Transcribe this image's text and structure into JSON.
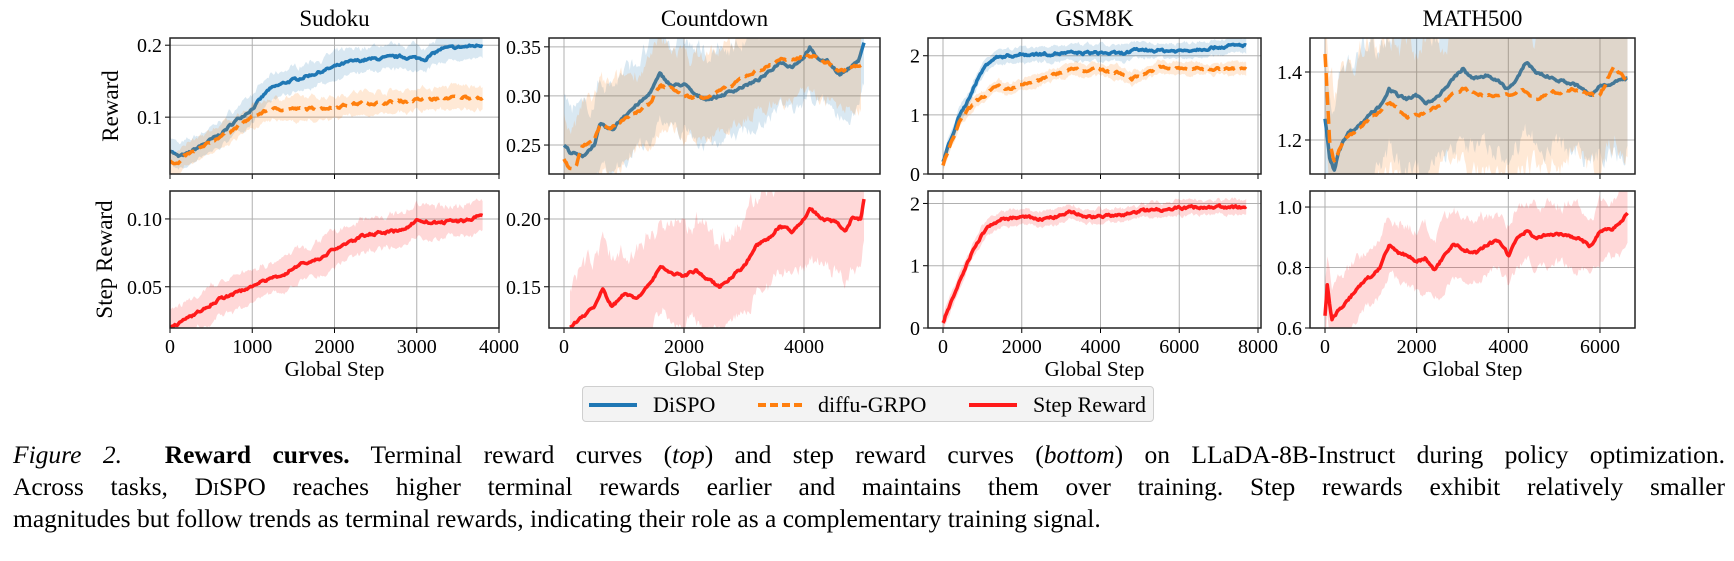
{
  "legend": {
    "items": [
      {
        "label": "DiSPO",
        "color": "#1f77b4",
        "style": "solid"
      },
      {
        "label": "diffu-GRPO",
        "color": "#ff7f0e",
        "style": "dashed"
      },
      {
        "label": "Step Reward",
        "color": "#ff1a1a",
        "style": "solid"
      }
    ]
  },
  "caption": {
    "figure_label": "Figure 2.",
    "bold_title": "Reward curves.",
    "line1_a": "Terminal reward curves (",
    "line1_top": "top",
    "line1_b": ") and step reward curves (",
    "line1_bottom": "bottom",
    "line1_c": ") on LLaDA-8B-Instruct during policy optimization.",
    "line2_a": "Across tasks,",
    "line2_method": "DiSPO",
    "line2_b": "reaches higher terminal rewards earlier and maintains them over training. Step rewards exhibit relatively smaller",
    "line3": "magnitudes but follow trends as terminal rewards, indicating their role as a complementary training signal."
  },
  "chart_data": [
    {
      "type": "line",
      "title": "Sudoku",
      "row": "top",
      "ylabel": "Reward",
      "xlabel": "",
      "xlim": [
        0,
        4000
      ],
      "ylim": [
        0.021,
        0.21
      ],
      "xticks": [
        0,
        1000,
        2000,
        3000,
        4000
      ],
      "yticks": [
        0.1,
        0.2
      ],
      "ytick_labels": [
        "0.1",
        "0.2"
      ],
      "grid": true,
      "series": [
        {
          "name": "DiSPO",
          "color": "#1f77b4",
          "band": 0.018,
          "x": [
            0,
            100,
            200,
            400,
            600,
            800,
            1000,
            1200,
            1400,
            1600,
            1800,
            2000,
            2200,
            2400,
            2600,
            2800,
            3000,
            3100,
            3300,
            3500,
            3800
          ],
          "y": [
            0.055,
            0.045,
            0.048,
            0.062,
            0.075,
            0.095,
            0.112,
            0.138,
            0.148,
            0.155,
            0.162,
            0.17,
            0.177,
            0.18,
            0.182,
            0.184,
            0.182,
            0.181,
            0.195,
            0.197,
            0.2
          ]
        },
        {
          "name": "diffu-GRPO",
          "color": "#ff7f0e",
          "band": 0.016,
          "x": [
            0,
            100,
            200,
            400,
            600,
            800,
            1000,
            1200,
            1400,
            1600,
            1800,
            2000,
            2200,
            2400,
            2600,
            2800,
            3000,
            3200,
            3400,
            3600,
            3800
          ],
          "y": [
            0.04,
            0.035,
            0.047,
            0.058,
            0.073,
            0.085,
            0.1,
            0.11,
            0.112,
            0.111,
            0.112,
            0.114,
            0.118,
            0.12,
            0.12,
            0.122,
            0.124,
            0.125,
            0.127,
            0.128,
            0.126
          ]
        }
      ]
    },
    {
      "type": "line",
      "title": "Countdown",
      "row": "top",
      "ylabel": "",
      "xlabel": "",
      "xlim": [
        -250,
        5267
      ],
      "ylim": [
        0.2205,
        0.359
      ],
      "xticks": [
        0,
        2000,
        4000
      ],
      "yticks": [
        0.25,
        0.3,
        0.35
      ],
      "ytick_labels": [
        "0.25",
        "0.30",
        "0.35"
      ],
      "grid": true,
      "series": [
        {
          "name": "DiSPO",
          "color": "#1f77b4",
          "band": 0.045,
          "x": [
            0,
            100,
            300,
            500,
            600,
            800,
            1000,
            1200,
            1400,
            1600,
            1800,
            2000,
            2200,
            2400,
            2600,
            2800,
            3000,
            3200,
            3400,
            3600,
            3800,
            4000,
            4100,
            4200,
            4400,
            4600,
            4800,
            4900,
            5000
          ],
          "y": [
            0.25,
            0.243,
            0.238,
            0.25,
            0.27,
            0.265,
            0.28,
            0.29,
            0.3,
            0.322,
            0.31,
            0.312,
            0.3,
            0.297,
            0.3,
            0.305,
            0.31,
            0.315,
            0.323,
            0.335,
            0.33,
            0.34,
            0.35,
            0.338,
            0.335,
            0.322,
            0.33,
            0.335,
            0.355
          ]
        },
        {
          "name": "diffu-GRPO",
          "color": "#ff7f0e",
          "band": 0.042,
          "x": [
            0,
            100,
            200,
            300,
            500,
            600,
            800,
            1000,
            1200,
            1400,
            1600,
            1800,
            2000,
            2200,
            2400,
            2600,
            2800,
            3000,
            3200,
            3400,
            3600,
            3800,
            4000,
            4200,
            4400,
            4600,
            4800,
            4950
          ],
          "y": [
            0.235,
            0.225,
            0.228,
            0.248,
            0.255,
            0.27,
            0.268,
            0.275,
            0.283,
            0.29,
            0.31,
            0.308,
            0.3,
            0.298,
            0.3,
            0.305,
            0.31,
            0.32,
            0.325,
            0.33,
            0.338,
            0.335,
            0.342,
            0.34,
            0.333,
            0.325,
            0.33,
            0.33
          ]
        }
      ]
    },
    {
      "type": "line",
      "title": "GSM8K",
      "row": "top",
      "ylabel": "",
      "xlabel": "",
      "xlim": [
        -381,
        8076
      ],
      "ylim": [
        0,
        2.3
      ],
      "xticks": [
        0,
        2000,
        4000,
        6000,
        8000
      ],
      "yticks": [
        0,
        1,
        2
      ],
      "ytick_labels": [
        "0",
        "1",
        "2"
      ],
      "grid": true,
      "series": [
        {
          "name": "DiSPO",
          "color": "#1f77b4",
          "band": 0.13,
          "x": [
            0,
            200,
            400,
            600,
            800,
            1000,
            1200,
            1400,
            2000,
            3000,
            4000,
            4500,
            5000,
            6000,
            7000,
            7700
          ],
          "y": [
            0.2,
            0.6,
            0.95,
            1.2,
            1.5,
            1.75,
            1.92,
            1.98,
            2.02,
            2.04,
            2.05,
            2.03,
            2.1,
            2.08,
            2.15,
            2.18
          ]
        },
        {
          "name": "diffu-GRPO",
          "color": "#ff7f0e",
          "band": 0.11,
          "x": [
            0,
            200,
            400,
            600,
            800,
            1000,
            1200,
            1400,
            1600,
            2000,
            2500,
            3000,
            3300,
            3600,
            4000,
            4500,
            4800,
            5200,
            5500,
            6000,
            7000,
            7700
          ],
          "y": [
            0.15,
            0.5,
            0.85,
            1.05,
            1.2,
            1.3,
            1.4,
            1.48,
            1.43,
            1.5,
            1.6,
            1.72,
            1.8,
            1.75,
            1.77,
            1.7,
            1.62,
            1.72,
            1.8,
            1.78,
            1.78,
            1.78
          ]
        }
      ]
    },
    {
      "type": "line",
      "title": "MATH500",
      "row": "top",
      "ylabel": "",
      "xlabel": "",
      "xlim": [
        -327,
        6764
      ],
      "ylim": [
        1.1,
        1.5
      ],
      "xticks": [
        0,
        2000,
        4000,
        6000
      ],
      "yticks": [
        1.2,
        1.4
      ],
      "ytick_labels": [
        "1.2",
        "1.4"
      ],
      "grid": true,
      "series": [
        {
          "name": "DiSPO",
          "color": "#1f77b4",
          "band": 0.2,
          "x": [
            0,
            100,
            200,
            300,
            500,
            800,
            1000,
            1200,
            1400,
            1600,
            1800,
            2000,
            2200,
            2500,
            2800,
            3000,
            3200,
            3500,
            3800,
            4000,
            4200,
            4400,
            4600,
            5000,
            5500,
            5800,
            6000,
            6300,
            6600
          ],
          "y": [
            1.26,
            1.15,
            1.11,
            1.17,
            1.22,
            1.25,
            1.28,
            1.3,
            1.35,
            1.33,
            1.32,
            1.33,
            1.31,
            1.33,
            1.38,
            1.41,
            1.38,
            1.39,
            1.37,
            1.35,
            1.38,
            1.43,
            1.4,
            1.38,
            1.36,
            1.33,
            1.36,
            1.37,
            1.38
          ]
        },
        {
          "name": "diffu-GRPO",
          "color": "#ff7f0e",
          "band": 0.21,
          "x": [
            0,
            100,
            200,
            400,
            600,
            800,
            1000,
            1200,
            1400,
            1600,
            1800,
            2000,
            2200,
            2500,
            2800,
            3000,
            3500,
            4000,
            4300,
            4600,
            5000,
            5500,
            6000,
            6300,
            6600
          ],
          "y": [
            1.45,
            1.2,
            1.14,
            1.2,
            1.22,
            1.24,
            1.27,
            1.28,
            1.31,
            1.29,
            1.27,
            1.27,
            1.28,
            1.3,
            1.34,
            1.35,
            1.33,
            1.33,
            1.35,
            1.32,
            1.34,
            1.35,
            1.33,
            1.42,
            1.37
          ]
        }
      ]
    },
    {
      "type": "line",
      "title": "",
      "row": "bottom",
      "ylabel": "Step Reward",
      "xlabel": "Global Step",
      "xlim": [
        0,
        4000
      ],
      "ylim": [
        0.0196,
        0.1206
      ],
      "xticks": [
        0,
        1000,
        2000,
        3000,
        4000
      ],
      "xtick_labels": [
        "0",
        "1000",
        "2000",
        "3000",
        "4000"
      ],
      "yticks": [
        0.05,
        0.1
      ],
      "ytick_labels": [
        "0.05",
        "0.10"
      ],
      "grid": true,
      "series": [
        {
          "name": "Step Reward",
          "color": "#ff1a1a",
          "band": 0.012,
          "x": [
            0,
            200,
            400,
            600,
            800,
            1000,
            1200,
            1400,
            1600,
            1800,
            2000,
            2200,
            2400,
            2600,
            2800,
            3000,
            3200,
            3400,
            3600,
            3800
          ],
          "y": [
            0.02,
            0.026,
            0.033,
            0.041,
            0.045,
            0.051,
            0.055,
            0.06,
            0.067,
            0.07,
            0.078,
            0.083,
            0.089,
            0.09,
            0.091,
            0.099,
            0.097,
            0.098,
            0.099,
            0.103
          ]
        }
      ]
    },
    {
      "type": "line",
      "title": "",
      "row": "bottom",
      "ylabel": "",
      "xlabel": "Global Step",
      "xlim": [
        -250,
        5267
      ],
      "ylim": [
        0.1196,
        0.2206
      ],
      "xticks": [
        0,
        2000,
        4000
      ],
      "xtick_labels": [
        "0",
        "2000",
        "4000"
      ],
      "yticks": [
        0.15,
        0.2
      ],
      "ytick_labels": [
        "0.15",
        "0.20"
      ],
      "grid": true,
      "series": [
        {
          "name": "Step Reward",
          "color": "#ff1a1a",
          "band": 0.035,
          "x": [
            100,
            300,
            500,
            650,
            800,
            1000,
            1200,
            1400,
            1600,
            1800,
            2000,
            2200,
            2400,
            2600,
            2800,
            3000,
            3200,
            3400,
            3600,
            3800,
            4000,
            4100,
            4300,
            4500,
            4700,
            4800,
            4950,
            5000
          ],
          "y": [
            0.12,
            0.128,
            0.135,
            0.148,
            0.135,
            0.145,
            0.142,
            0.15,
            0.165,
            0.16,
            0.158,
            0.162,
            0.155,
            0.15,
            0.158,
            0.165,
            0.18,
            0.185,
            0.195,
            0.19,
            0.2,
            0.208,
            0.2,
            0.198,
            0.192,
            0.2,
            0.2,
            0.215
          ]
        }
      ]
    },
    {
      "type": "line",
      "title": "",
      "row": "bottom",
      "ylabel": "",
      "xlabel": "Global Step",
      "xlim": [
        -381,
        8076
      ],
      "ylim": [
        0,
        2.2
      ],
      "xticks": [
        0,
        2000,
        4000,
        6000,
        8000
      ],
      "xtick_labels": [
        "0",
        "2000",
        "4000",
        "6000",
        "8000"
      ],
      "yticks": [
        0,
        1,
        2
      ],
      "ytick_labels": [
        "0",
        "1",
        "2"
      ],
      "grid": true,
      "series": [
        {
          "name": "Step Reward",
          "color": "#ff1a1a",
          "band": 0.12,
          "x": [
            0,
            200,
            400,
            600,
            800,
            1000,
            1200,
            1500,
            2000,
            2500,
            3000,
            3300,
            3600,
            4000,
            4500,
            5000,
            6000,
            7000,
            7700
          ],
          "y": [
            0.1,
            0.4,
            0.7,
            1.0,
            1.3,
            1.5,
            1.65,
            1.75,
            1.78,
            1.75,
            1.8,
            1.87,
            1.78,
            1.8,
            1.8,
            1.88,
            1.93,
            1.95,
            1.93
          ]
        }
      ]
    },
    {
      "type": "line",
      "title": "",
      "row": "bottom",
      "ylabel": "",
      "xlabel": "Global Step",
      "xlim": [
        -327,
        6764
      ],
      "ylim": [
        0.6,
        1.053
      ],
      "xticks": [
        0,
        2000,
        4000,
        6000
      ],
      "xtick_labels": [
        "0",
        "2000",
        "4000",
        "6000"
      ],
      "yticks": [
        0.6,
        0.8,
        1.0
      ],
      "ytick_labels": [
        "0.6",
        "0.8",
        "1.0"
      ],
      "grid": true,
      "series": [
        {
          "name": "Step Reward",
          "color": "#ff1a1a",
          "band": 0.1,
          "x": [
            0,
            50,
            150,
            300,
            500,
            800,
            1000,
            1200,
            1400,
            1600,
            1800,
            2000,
            2200,
            2400,
            2600,
            2800,
            3000,
            3300,
            3600,
            3800,
            4000,
            4200,
            4400,
            4600,
            5000,
            5500,
            5800,
            6000,
            6300,
            6600
          ],
          "y": [
            0.64,
            0.74,
            0.63,
            0.66,
            0.69,
            0.75,
            0.77,
            0.8,
            0.87,
            0.85,
            0.84,
            0.82,
            0.83,
            0.79,
            0.84,
            0.88,
            0.86,
            0.85,
            0.88,
            0.89,
            0.84,
            0.9,
            0.92,
            0.9,
            0.91,
            0.9,
            0.87,
            0.92,
            0.93,
            0.98
          ]
        }
      ]
    }
  ]
}
